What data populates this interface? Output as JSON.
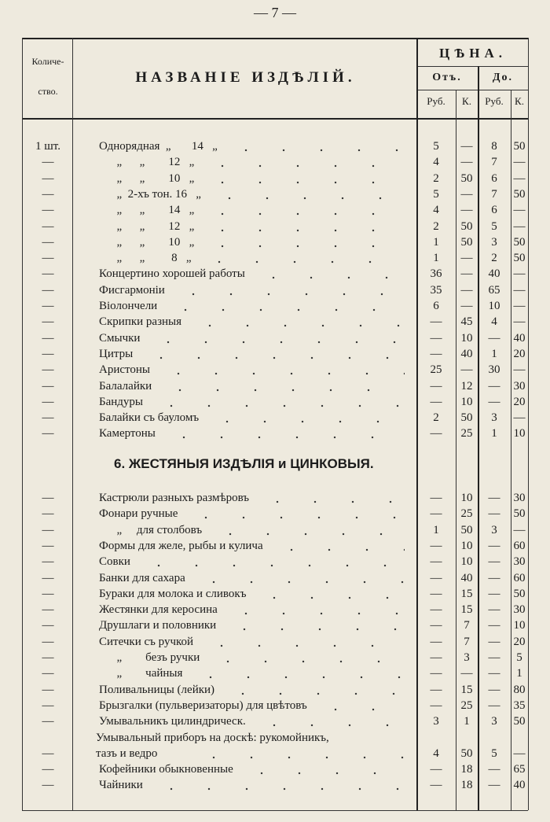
{
  "page_number": "— 7 —",
  "header": {
    "quantity": [
      "Количе-",
      "ство."
    ],
    "title": "НАЗВАНІЕ ИЗДѢЛІЙ.",
    "price": "ЦѢНА.",
    "from": "Отъ.",
    "to": "До.",
    "units": [
      "Руб.",
      "К.",
      "Руб.",
      "К."
    ]
  },
  "sections": [
    {
      "rows": [
        [
          "1 шт.",
          "Однорядная  „       14   „",
          "5",
          "—",
          "8",
          "50"
        ],
        [
          "—",
          "      „      „        12   „",
          "4",
          "—",
          "7",
          "—"
        ],
        [
          "—",
          "      „      „        10   „",
          "2",
          "50",
          "6",
          "—"
        ],
        [
          "—",
          "      „  2-хъ тон. 16   „",
          "5",
          "—",
          "7",
          "50"
        ],
        [
          "—",
          "      „      „        14   „",
          "4",
          "—",
          "6",
          "—"
        ],
        [
          "—",
          "      „      „        12   „",
          "2",
          "50",
          "5",
          "—"
        ],
        [
          "—",
          "      „      „        10   „",
          "1",
          "50",
          "3",
          "50"
        ],
        [
          "—",
          "      „      „         8   „",
          "1",
          "—",
          "2",
          "50"
        ],
        [
          "—",
          "Концертино хорошей работы",
          "36",
          "—",
          "40",
          "—"
        ],
        [
          "—",
          "Фисгармоніи",
          "35",
          "—",
          "65",
          "—"
        ],
        [
          "—",
          "Віолончели",
          "6",
          "—",
          "10",
          "—"
        ],
        [
          "—",
          "Скрипки разныя",
          "—",
          "45",
          "4",
          "—"
        ],
        [
          "—",
          "Смычки",
          "—",
          "10",
          "—",
          "40"
        ],
        [
          "—",
          "Цитры",
          "—",
          "40",
          "1",
          "20"
        ],
        [
          "—",
          "Аристоны",
          "25",
          "—",
          "30",
          "—"
        ],
        [
          "—",
          "Балалайки",
          "—",
          "12",
          "—",
          "30"
        ],
        [
          "—",
          "Бандуры",
          "—",
          "10",
          "—",
          "20"
        ],
        [
          "—",
          "Балайки съ бауломъ",
          "2",
          "50",
          "3",
          "—"
        ],
        [
          "—",
          "Камертоны",
          "—",
          "25",
          "1",
          "10"
        ]
      ]
    },
    {
      "heading": "6. ЖЕСТЯНЫЯ ИЗДѢЛІЯ и ЦИНКОВЫЯ.",
      "rows": [
        [
          "—",
          "Кастрюли разныхъ размѣровъ",
          "—",
          "10",
          "—",
          "30"
        ],
        [
          "—",
          "Фонари ручные",
          "—",
          "25",
          "—",
          "50"
        ],
        [
          "—",
          "      „     для столбовъ",
          "1",
          "50",
          "3",
          "—"
        ],
        [
          "—",
          "Формы для желе, рыбы и кулича",
          "—",
          "10",
          "—",
          "60"
        ],
        [
          "—",
          "Совки",
          "—",
          "10",
          "—",
          "30"
        ],
        [
          "—",
          "Банки для сахара",
          "—",
          "40",
          "—",
          "60"
        ],
        [
          "—",
          "Бураки для молока и сливокъ",
          "—",
          "15",
          "—",
          "50"
        ],
        [
          "—",
          "Жестянки для керосина",
          "—",
          "15",
          "—",
          "30"
        ],
        [
          "—",
          "Друшлаги и половники",
          "—",
          "7",
          "—",
          "10"
        ],
        [
          "—",
          "Ситечки съ ручкой",
          "—",
          "7",
          "—",
          "20"
        ],
        [
          "—",
          "      „        безъ ручки",
          "—",
          "3",
          "—",
          "5"
        ],
        [
          "—",
          "      „        чайныя",
          "—",
          "—",
          "—",
          "1"
        ],
        [
          "—",
          "Поливальницы (лейки)",
          "—",
          "15",
          "—",
          "80"
        ],
        [
          "—",
          "Брызгалки (пульверизаторы) для цвѣтовъ",
          "—",
          "25",
          "—",
          "35"
        ],
        [
          "—",
          "Умывальникъ цилиндрическ.",
          "3",
          "1",
          "3",
          "50"
        ],
        [
          "—",
          "Умывальный приборъ на доскѣ: рукомойникъ,\nтазъ и ведро",
          "4",
          "50",
          "5",
          "—"
        ],
        [
          "—",
          "Кофейники обыкновенные",
          "—",
          "18",
          "—",
          "65"
        ],
        [
          "—",
          "Чайники",
          "—",
          "18",
          "—",
          "40"
        ]
      ]
    }
  ]
}
